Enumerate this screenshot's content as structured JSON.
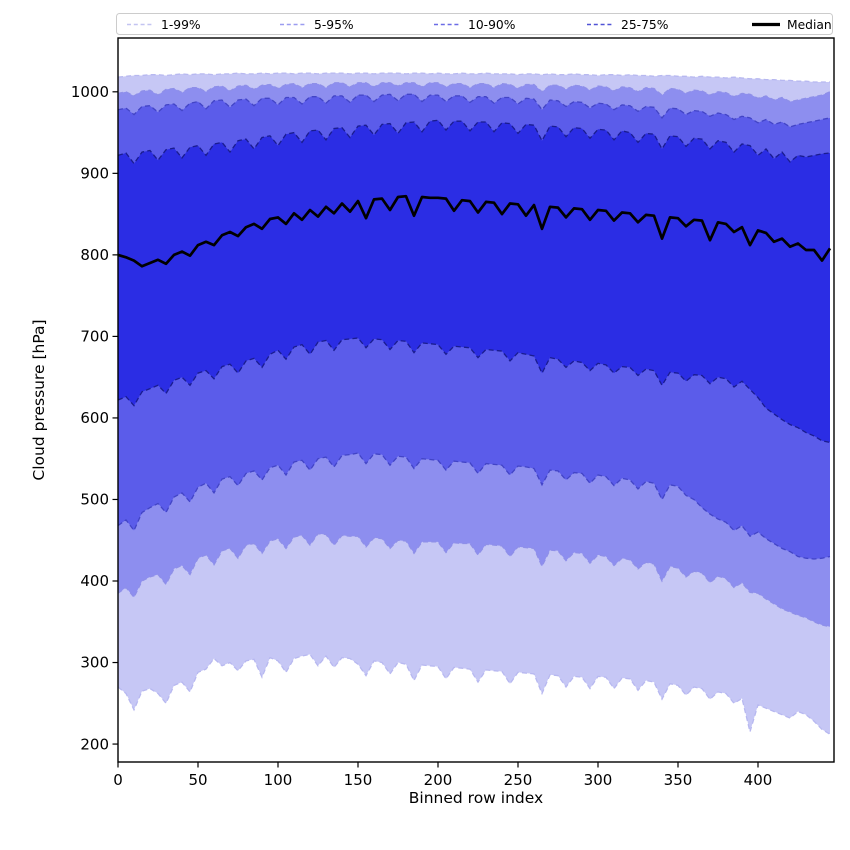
{
  "chart_data": {
    "type": "area",
    "subtype": "percentile-fan-chart",
    "title": "",
    "xlabel": "Binned row index",
    "ylabel": "Cloud pressure [hPa]",
    "xlim": [
      0,
      447.5
    ],
    "ylim": [
      178,
      1066
    ],
    "y_axis_inverted": false,
    "grid": false,
    "legend_position": "top-expanded-horizontal",
    "xticks": [
      0,
      50,
      100,
      150,
      200,
      250,
      300,
      350,
      400
    ],
    "yticks": [
      200,
      300,
      400,
      500,
      600,
      700,
      800,
      900,
      1000
    ],
    "x_start": 0,
    "x_step": 5,
    "bands": [
      {
        "label": "1-99%",
        "upper": "p99",
        "lower": "p01",
        "fill": "#c6c7f5",
        "edge": "#b7b8f0",
        "legend_color": "#c3c4f1"
      },
      {
        "label": "5-95%",
        "upper": "p95",
        "lower": "p05",
        "fill": "#8d8eef",
        "edge": "#8e8fe8",
        "legend_color": "#9b9cf0"
      },
      {
        "label": "10-90%",
        "upper": "p90",
        "lower": "p10",
        "fill": "#5b5cea",
        "edge": "#4244c6",
        "legend_color": "#6b6ce6"
      },
      {
        "label": "25-75%",
        "upper": "p75",
        "lower": "p25",
        "fill": "#2b2de4",
        "edge": "#1a1c8f",
        "legend_color": "#5053d6"
      }
    ],
    "median": {
      "label": "Median",
      "color": "#000000",
      "series": "median",
      "linewidth": 2.7
    },
    "series": {
      "p99": [
        1018,
        1019,
        1020,
        1020,
        1021,
        1021,
        1020,
        1021,
        1022,
        1021,
        1022,
        1022,
        1021,
        1022,
        1022,
        1023,
        1022,
        1022,
        1023,
        1022,
        1023,
        1023,
        1022,
        1023,
        1023,
        1022,
        1023,
        1023,
        1023,
        1022,
        1023,
        1023,
        1022,
        1023,
        1023,
        1023,
        1022,
        1023,
        1023,
        1022,
        1023,
        1022,
        1022,
        1023,
        1022,
        1022,
        1023,
        1022,
        1022,
        1022,
        1021,
        1022,
        1022,
        1021,
        1022,
        1021,
        1021,
        1022,
        1021,
        1021,
        1020,
        1021,
        1021,
        1020,
        1021,
        1020,
        1020,
        1019,
        1020,
        1020,
        1019,
        1019,
        1018,
        1019,
        1018,
        1018,
        1017,
        1018,
        1017,
        1016,
        1016,
        1015,
        1015,
        1014,
        1014,
        1013,
        1013,
        1012,
        1012,
        1012
      ],
      "p95": [
        998,
        1000,
        995,
        1001,
        1002,
        996,
        1003,
        1004,
        999,
        1005,
        1005,
        1000,
        1006,
        1007,
        1001,
        1007,
        1008,
        1003,
        1008,
        1009,
        1004,
        1009,
        1010,
        1005,
        1010,
        1010,
        1005,
        1011,
        1011,
        1006,
        1011,
        1011,
        1006,
        1011,
        1011,
        1007,
        1011,
        1011,
        1006,
        1011,
        1011,
        1006,
        1010,
        1010,
        1005,
        1010,
        1010,
        1005,
        1010,
        1009,
        1004,
        1009,
        1009,
        1000,
        1008,
        1008,
        1003,
        1008,
        1007,
        1002,
        1007,
        1006,
        1001,
        1006,
        1005,
        1000,
        1005,
        1004,
        996,
        1004,
        1003,
        998,
        1002,
        1001,
        996,
        1000,
        999,
        994,
        998,
        997,
        992,
        995,
        990,
        993,
        988,
        990,
        992,
        994,
        996,
        1000
      ],
      "p90": [
        978,
        980,
        972,
        982,
        983,
        975,
        984,
        985,
        977,
        986,
        988,
        979,
        989,
        990,
        981,
        990,
        991,
        983,
        992,
        992,
        984,
        993,
        993,
        985,
        994,
        994,
        986,
        995,
        995,
        987,
        996,
        996,
        988,
        996,
        997,
        989,
        997,
        997,
        988,
        996,
        996,
        988,
        995,
        995,
        987,
        994,
        994,
        986,
        993,
        993,
        985,
        992,
        991,
        978,
        990,
        989,
        982,
        988,
        987,
        980,
        986,
        985,
        978,
        984,
        983,
        976,
        982,
        981,
        968,
        980,
        979,
        972,
        977,
        976,
        970,
        974,
        972,
        966,
        970,
        968,
        962,
        966,
        960,
        963,
        957,
        960,
        962,
        964,
        966,
        968
      ],
      "p75": [
        922,
        925,
        912,
        926,
        928,
        916,
        929,
        931,
        919,
        932,
        934,
        922,
        936,
        938,
        926,
        940,
        942,
        930,
        944,
        946,
        934,
        948,
        950,
        938,
        952,
        953,
        941,
        955,
        956,
        944,
        958,
        959,
        947,
        960,
        961,
        949,
        962,
        963,
        951,
        964,
        965,
        953,
        964,
        964,
        952,
        963,
        963,
        951,
        962,
        961,
        949,
        960,
        959,
        940,
        958,
        957,
        945,
        956,
        955,
        943,
        954,
        953,
        941,
        952,
        950,
        938,
        949,
        948,
        930,
        946,
        945,
        933,
        943,
        942,
        930,
        940,
        938,
        926,
        936,
        934,
        922,
        930,
        918,
        926,
        914,
        922,
        920,
        922,
        924,
        925
      ],
      "median": [
        800,
        797,
        793,
        786,
        790,
        794,
        789,
        800,
        804,
        799,
        812,
        816,
        812,
        824,
        828,
        823,
        834,
        838,
        832,
        844,
        846,
        838,
        851,
        843,
        855,
        847,
        859,
        851,
        863,
        853,
        866,
        845,
        868,
        869,
        855,
        871,
        872,
        848,
        871,
        870,
        870,
        869,
        854,
        867,
        866,
        852,
        865,
        864,
        850,
        863,
        862,
        848,
        861,
        832,
        859,
        858,
        846,
        857,
        856,
        843,
        855,
        854,
        842,
        852,
        851,
        840,
        849,
        848,
        820,
        846,
        845,
        835,
        843,
        842,
        818,
        840,
        838,
        828,
        834,
        812,
        830,
        827,
        816,
        820,
        810,
        814,
        806,
        806,
        793,
        808
      ],
      "p25": [
        622,
        626,
        615,
        632,
        636,
        640,
        630,
        646,
        650,
        640,
        655,
        658,
        648,
        663,
        666,
        655,
        670,
        673,
        662,
        678,
        683,
        672,
        687,
        690,
        678,
        693,
        695,
        683,
        696,
        697,
        698,
        686,
        697,
        696,
        684,
        695,
        694,
        680,
        692,
        691,
        690,
        678,
        688,
        687,
        686,
        674,
        684,
        683,
        682,
        670,
        680,
        678,
        676,
        655,
        674,
        672,
        662,
        670,
        668,
        658,
        667,
        665,
        655,
        663,
        662,
        652,
        660,
        658,
        640,
        656,
        655,
        645,
        653,
        652,
        642,
        650,
        648,
        638,
        645,
        635,
        625,
        612,
        605,
        598,
        592,
        588,
        582,
        578,
        572,
        570
      ],
      "p10": [
        468,
        475,
        462,
        484,
        490,
        495,
        484,
        503,
        508,
        497,
        515,
        520,
        508,
        525,
        528,
        517,
        532,
        535,
        524,
        539,
        542,
        530,
        546,
        548,
        536,
        550,
        552,
        540,
        554,
        555,
        557,
        544,
        556,
        555,
        542,
        553,
        552,
        538,
        550,
        549,
        548,
        536,
        547,
        546,
        545,
        532,
        544,
        543,
        542,
        530,
        541,
        540,
        538,
        518,
        536,
        535,
        524,
        533,
        532,
        520,
        530,
        528,
        517,
        526,
        524,
        513,
        522,
        520,
        500,
        518,
        516,
        505,
        500,
        490,
        482,
        476,
        472,
        462,
        468,
        455,
        460,
        452,
        446,
        440,
        436,
        430,
        428,
        427,
        428,
        430
      ],
      "p05": [
        385,
        392,
        380,
        400,
        405,
        408,
        396,
        415,
        419,
        408,
        428,
        432,
        420,
        437,
        440,
        428,
        444,
        446,
        434,
        449,
        452,
        440,
        454,
        456,
        444,
        458,
        457,
        444,
        456,
        455,
        455,
        442,
        453,
        452,
        440,
        450,
        449,
        434,
        448,
        448,
        448,
        435,
        447,
        446,
        446,
        432,
        445,
        444,
        443,
        430,
        442,
        441,
        440,
        418,
        438,
        437,
        425,
        435,
        434,
        422,
        432,
        430,
        419,
        428,
        426,
        415,
        423,
        421,
        400,
        418,
        416,
        405,
        412,
        410,
        398,
        406,
        403,
        392,
        398,
        386,
        385,
        378,
        372,
        366,
        362,
        358,
        355,
        350,
        346,
        344
      ],
      "p01": [
        270,
        262,
        242,
        265,
        268,
        262,
        250,
        272,
        276,
        264,
        288,
        292,
        305,
        296,
        300,
        290,
        302,
        304,
        282,
        306,
        302,
        288,
        305,
        308,
        310,
        296,
        308,
        294,
        306,
        305,
        298,
        284,
        302,
        300,
        286,
        300,
        298,
        278,
        297,
        296,
        295,
        280,
        294,
        293,
        292,
        276,
        291,
        290,
        289,
        274,
        288,
        287,
        286,
        262,
        285,
        284,
        270,
        283,
        282,
        268,
        283,
        282,
        268,
        281,
        280,
        266,
        278,
        276,
        255,
        274,
        272,
        260,
        270,
        268,
        255,
        264,
        262,
        250,
        256,
        215,
        248,
        244,
        240,
        236,
        232,
        240,
        236,
        228,
        218,
        212
      ]
    }
  }
}
